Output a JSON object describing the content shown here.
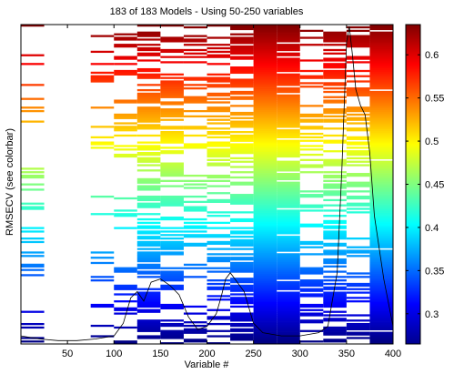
{
  "title": "183 of 183 Models - Using 50-250 variables",
  "chart_data": {
    "type": "heatmap",
    "title": "183 of 183 Models - Using 50-250 variables",
    "xlabel": "Variable #",
    "ylabel": "RMSECV (see colorbar)",
    "xlim": [
      0,
      400
    ],
    "xticks": [
      "50",
      "100",
      "150",
      "200",
      "250",
      "300",
      "350",
      "400"
    ],
    "models": 183,
    "colorbar": {
      "ticks": [
        "0.3",
        "0.35",
        "0.4",
        "0.45",
        "0.5",
        "0.55",
        "0.6"
      ],
      "range": [
        0.265,
        0.635
      ],
      "colormap": "jet"
    },
    "column_blocks": [
      {
        "x": [
          0,
          25
        ],
        "fill": 0.21
      },
      {
        "x": [
          75,
          100
        ],
        "fill": 0.12
      },
      {
        "x": [
          100,
          125
        ],
        "fill": 0.22
      },
      {
        "x": [
          125,
          150
        ],
        "fill": 0.62
      },
      {
        "x": [
          150,
          175
        ],
        "fill": 0.5
      },
      {
        "x": [
          175,
          200
        ],
        "fill": 0.3
      },
      {
        "x": [
          200,
          225
        ],
        "fill": 0.48
      },
      {
        "x": [
          225,
          250
        ],
        "fill": 0.58
      },
      {
        "x": [
          250,
          275
        ],
        "fill": 1.0
      },
      {
        "x": [
          275,
          300
        ],
        "fill": 0.9
      },
      {
        "x": [
          300,
          325
        ],
        "fill": 0.32
      },
      {
        "x": [
          325,
          350
        ],
        "fill": 0.55
      },
      {
        "x": [
          350,
          375
        ],
        "fill": 0.44
      },
      {
        "x": [
          375,
          400
        ],
        "fill": 0.98
      }
    ],
    "overlay_spectrum": {
      "x": [
        0,
        20,
        40,
        60,
        80,
        100,
        110,
        118,
        125,
        132,
        140,
        150,
        160,
        170,
        180,
        190,
        200,
        210,
        215,
        220,
        225,
        230,
        240,
        250,
        260,
        280,
        300,
        320,
        330,
        340,
        345,
        350,
        353,
        356,
        360,
        365,
        370,
        375,
        380,
        390,
        400
      ],
      "y": [
        0.02,
        0.01,
        0.005,
        0.005,
        0.01,
        0.02,
        0.06,
        0.14,
        0.16,
        0.13,
        0.19,
        0.2,
        0.18,
        0.15,
        0.08,
        0.04,
        0.05,
        0.09,
        0.14,
        0.2,
        0.22,
        0.2,
        0.16,
        0.06,
        0.03,
        0.02,
        0.02,
        0.03,
        0.05,
        0.22,
        0.55,
        0.95,
        1.0,
        0.92,
        0.8,
        0.75,
        0.72,
        0.6,
        0.4,
        0.2,
        0.05
      ]
    }
  }
}
